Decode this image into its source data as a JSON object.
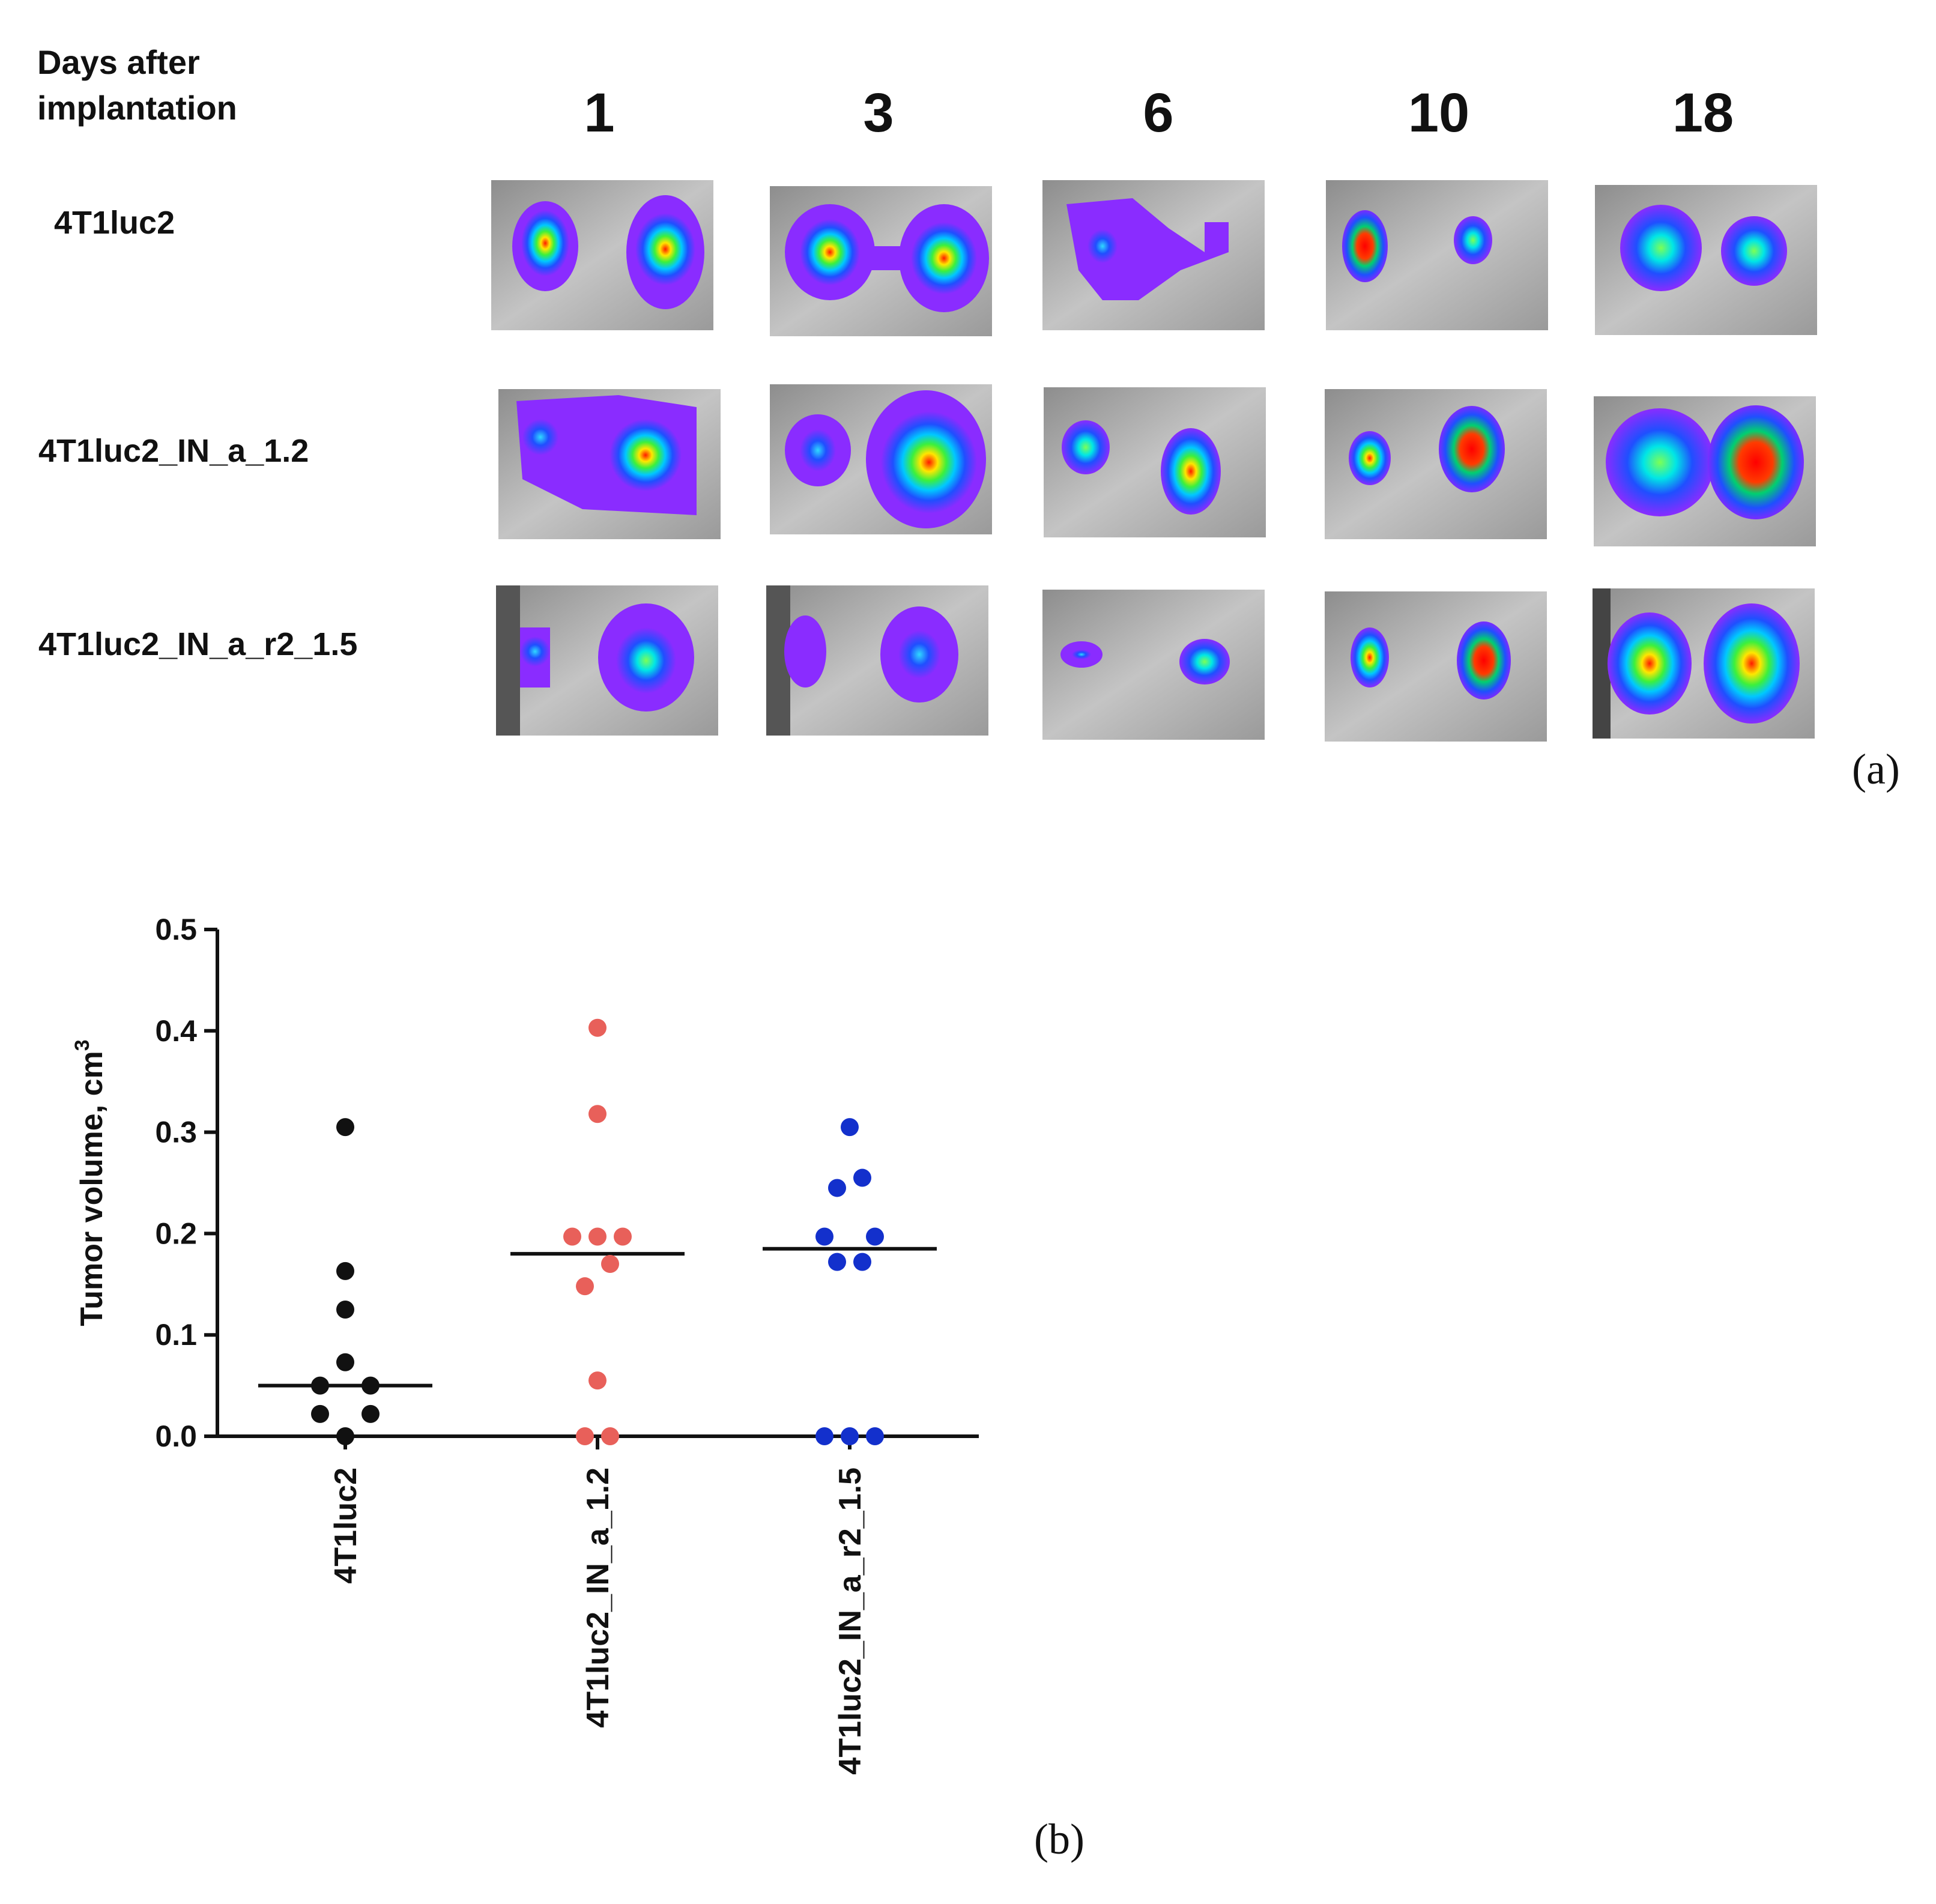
{
  "panel_a": {
    "header_line1": "Days after",
    "header_line2": "implantation",
    "days": [
      "1",
      "3",
      "6",
      "10",
      "18"
    ],
    "groups": [
      "4T1luc2",
      "4T1luc2_IN_a_1.2",
      "4T1luc2_IN_a_r2_1.5"
    ],
    "letter": "(a)"
  },
  "panel_b": {
    "letter": "(b)"
  },
  "chart_data": {
    "type": "scatter",
    "title": "",
    "ylabel": "Tumor volume, cm",
    "ylabel_superscript": "3",
    "xlabel": "",
    "ylim": [
      0,
      0.5
    ],
    "yticks": [
      "0.0",
      "0.1",
      "0.2",
      "0.3",
      "0.4",
      "0.5"
    ],
    "categories": [
      "4T1luc2",
      "4T1luc2_IN_a_1.2",
      "4T1luc2_IN_a_r2_1.5"
    ],
    "series": [
      {
        "name": "4T1luc2",
        "color": "#111111",
        "median": 0.05,
        "points": [
          {
            "dx": 0,
            "y": 0.305
          },
          {
            "dx": 0,
            "y": 0.163
          },
          {
            "dx": 0,
            "y": 0.125
          },
          {
            "dx": 0,
            "y": 0.073
          },
          {
            "dx": -1,
            "y": 0.05
          },
          {
            "dx": 1,
            "y": 0.05
          },
          {
            "dx": -1,
            "y": 0.022
          },
          {
            "dx": 1,
            "y": 0.022
          },
          {
            "dx": 0,
            "y": 0.0
          }
        ]
      },
      {
        "name": "4T1luc2_IN_a_1.2",
        "color": "#e8605a",
        "median": 0.18,
        "points": [
          {
            "dx": 0,
            "y": 0.403
          },
          {
            "dx": 0,
            "y": 0.318
          },
          {
            "dx": -1,
            "y": 0.197
          },
          {
            "dx": 0,
            "y": 0.197
          },
          {
            "dx": 1,
            "y": 0.197
          },
          {
            "dx": -0.5,
            "y": 0.148
          },
          {
            "dx": 0.5,
            "y": 0.17
          },
          {
            "dx": 0,
            "y": 0.055
          },
          {
            "dx": -0.5,
            "y": 0.0
          },
          {
            "dx": 0.5,
            "y": 0.0
          }
        ]
      },
      {
        "name": "4T1luc2_IN_a_r2_1.5",
        "color": "#1330cc",
        "median": 0.185,
        "points": [
          {
            "dx": 0,
            "y": 0.305
          },
          {
            "dx": 0.5,
            "y": 0.255
          },
          {
            "dx": -0.5,
            "y": 0.245
          },
          {
            "dx": -1,
            "y": 0.197
          },
          {
            "dx": 1,
            "y": 0.197
          },
          {
            "dx": -0.5,
            "y": 0.172
          },
          {
            "dx": 0.5,
            "y": 0.172
          },
          {
            "dx": -1,
            "y": 0.0
          },
          {
            "dx": 0,
            "y": 0.0
          },
          {
            "dx": 1,
            "y": 0.0
          }
        ]
      }
    ]
  }
}
